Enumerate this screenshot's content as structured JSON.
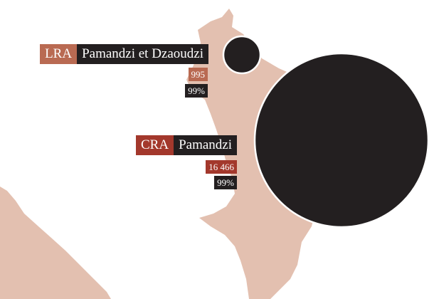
{
  "labels": [
    {
      "code": "LRA",
      "name": "Pamandzi et Dzaoudzi",
      "count": "995",
      "share": "99%"
    },
    {
      "code": "CRA",
      "name": "Pamandzi",
      "count": "16 466",
      "share": "99%"
    }
  ]
}
